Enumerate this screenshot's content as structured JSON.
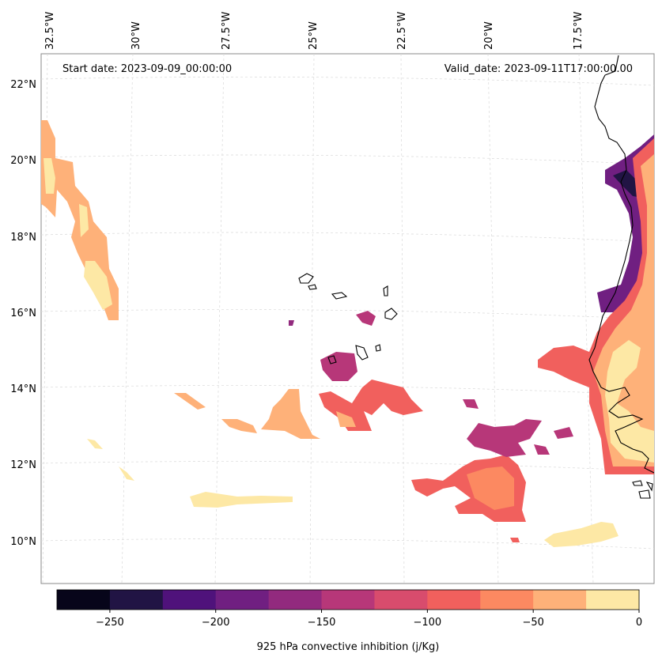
{
  "map": {
    "start_date": "Start date: 2023-09-09_00:00:00",
    "valid_date": "Valid_date: 2023-09-11T17:00:00.00",
    "lon_labels": [
      "32.5°W",
      "30°W",
      "27.5°W",
      "25°W",
      "22.5°W",
      "20°W",
      "17.5°W"
    ],
    "lat_labels": [
      "22°N",
      "20°N",
      "18°N",
      "16°N",
      "14°N",
      "12°N",
      "10°N"
    ],
    "coastline_color": "#000000",
    "gridline_color": "#cccccc"
  },
  "colorbar": {
    "label": "925 hPa convective inhibition (j/Kg)",
    "tick_labels": [
      "−250",
      "−200",
      "−150",
      "−100",
      "−50",
      "0"
    ],
    "range": [
      -275,
      0
    ],
    "levels": [
      -275,
      -250,
      -225,
      -200,
      -175,
      -150,
      -125,
      -100,
      -75,
      -50,
      -25,
      0
    ],
    "colors": [
      "#07051a",
      "#211444",
      "#4f127b",
      "#701f81",
      "#922a7e",
      "#b73779",
      "#d84c6d",
      "#f1605d",
      "#fc8961",
      "#feb179",
      "#fde8a5"
    ]
  }
}
